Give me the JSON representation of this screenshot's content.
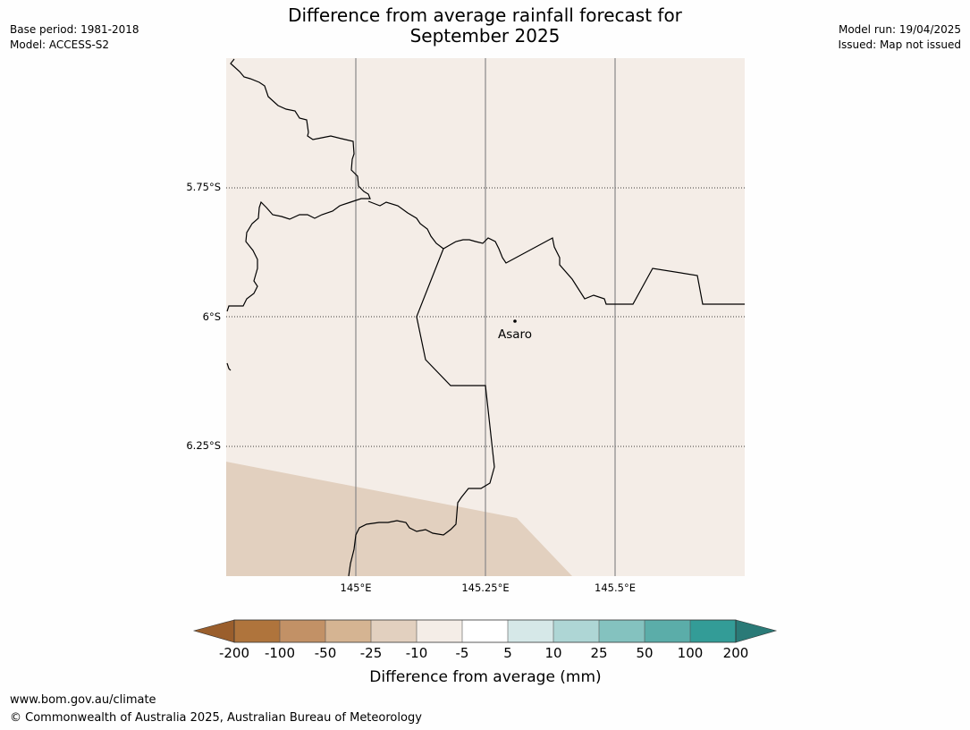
{
  "title_line1": "Difference from average rainfall forecast for",
  "title_line2": "September 2025",
  "base_period": "Base period: 1981-2018",
  "model": "Model: ACCESS-S2",
  "model_run": "Model run: 19/04/2025",
  "issued": "Issued: Map not issued",
  "map": {
    "lat_labels": [
      "5.75°S",
      "6°S",
      "6.25°S"
    ],
    "lon_labels": [
      "145°E",
      "145.25°E",
      "145.5°E"
    ],
    "place_name": "Asaro"
  },
  "legend": {
    "title": "Difference from average (mm)",
    "tick_labels": [
      "-200",
      "-100",
      "-50",
      "-25",
      "-10",
      "-5",
      "5",
      "10",
      "25",
      "50",
      "100",
      "200"
    ],
    "colors": [
      "#9a5e2c",
      "#af743c",
      "#c29166",
      "#d5b492",
      "#e2d0bf",
      "#f4ede7",
      "#ffffff",
      "#d6e8e8",
      "#aed6d5",
      "#84c2bf",
      "#5bada9",
      "#339c97",
      "#2a7a77"
    ]
  },
  "field_colors": {
    "light": "#f4ede7",
    "tan": "#e2d0bf"
  },
  "footer": {
    "url": "www.bom.gov.au/climate",
    "copyright": "© Commonwealth of Australia 2025, Australian Bureau of Meteorology"
  }
}
